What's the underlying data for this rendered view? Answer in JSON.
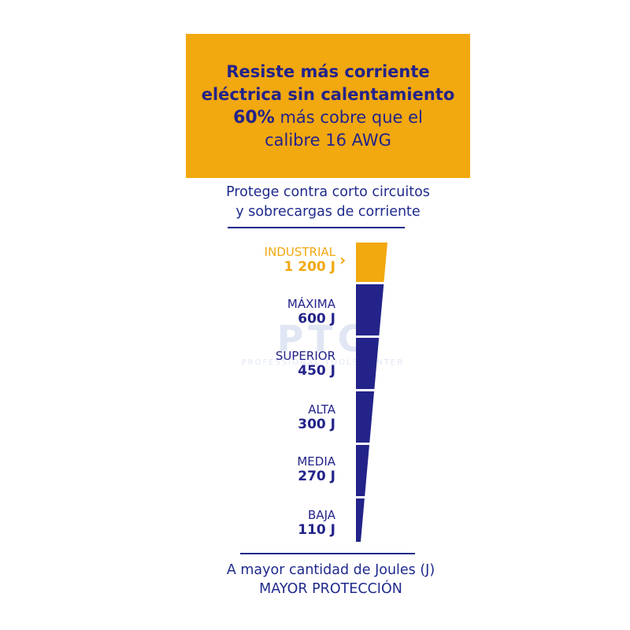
{
  "banner": {
    "line1": "Resiste más corriente",
    "line2": "eléctrica sin calentamiento",
    "line3_bold": "60%",
    "line3_rest": " más cobre que el",
    "line4": "calibre 16 AWG"
  },
  "subtitle": {
    "line1": "Protege contra corto circuitos",
    "line2": "y sobrecargas de corriente"
  },
  "levels": [
    {
      "name": "INDUSTRIAL",
      "value": "1 200 J",
      "joules": 1200
    },
    {
      "name": "MÁXIMA",
      "value": "600 J",
      "joules": 600
    },
    {
      "name": "SUPERIOR",
      "value": "450 J",
      "joules": 450
    },
    {
      "name": "ALTA",
      "value": "300 J",
      "joules": 300
    },
    {
      "name": "MEDIA",
      "value": "270 J",
      "joules": 270
    },
    {
      "name": "BAJA",
      "value": "110 J",
      "joules": 110
    }
  ],
  "watermark": {
    "brand": "PTC",
    "tagline": "PROFESSIONAL TOOLS CENTER"
  },
  "footer": {
    "line1": "A mayor cantidad de Joules (J)",
    "line2": "MAYOR PROTECCIÓN"
  },
  "colors": {
    "accent": "#f2a80f",
    "navy": "#23238a"
  },
  "icons": {
    "pointer": "chevron-right-icon"
  }
}
